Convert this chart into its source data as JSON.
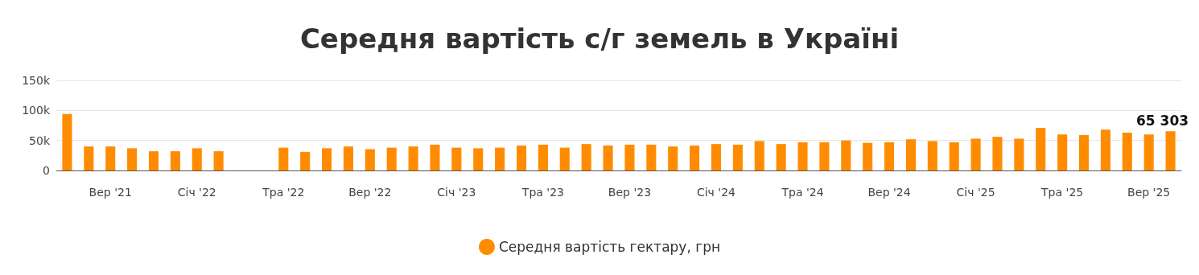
{
  "chart_data": {
    "type": "bar",
    "title": "Середня вартість с/г земель в Україні",
    "categories": [
      null,
      null,
      "Вер '21",
      null,
      null,
      null,
      "Січ '22",
      null,
      null,
      null,
      "Тра '22",
      null,
      null,
      null,
      "Вер '22",
      null,
      null,
      null,
      "Січ '23",
      null,
      null,
      null,
      "Тра '23",
      null,
      null,
      null,
      "Вер '23",
      null,
      null,
      null,
      "Січ '24",
      null,
      null,
      null,
      "Тра '24",
      null,
      null,
      null,
      "Вер '24",
      null,
      null,
      null,
      "Січ '25",
      null,
      null,
      null,
      "Тра '25",
      null,
      null,
      null,
      "Вер '25",
      null
    ],
    "series": [
      {
        "name": "Середня вартість гектару, грн",
        "color": "#ff8c00",
        "values": [
          94000,
          40000,
          40000,
          37000,
          32000,
          32000,
          37000,
          32000,
          null,
          null,
          38000,
          31000,
          37000,
          40000,
          35500,
          38000,
          40000,
          43000,
          38000,
          37000,
          38000,
          41500,
          43000,
          38000,
          44000,
          41500,
          43000,
          43000,
          40000,
          41500,
          44000,
          43000,
          49000,
          44000,
          47000,
          47000,
          50000,
          46000,
          47000,
          52000,
          49000,
          47000,
          53000,
          56000,
          53000,
          71000,
          60000,
          59000,
          68000,
          63000,
          60000,
          65303
        ],
        "value_labels": [
          null,
          null,
          null,
          null,
          null,
          null,
          null,
          null,
          null,
          null,
          null,
          null,
          null,
          null,
          null,
          null,
          null,
          null,
          null,
          null,
          null,
          null,
          null,
          null,
          null,
          null,
          null,
          null,
          null,
          null,
          null,
          null,
          null,
          null,
          null,
          null,
          null,
          null,
          null,
          null,
          null,
          null,
          null,
          null,
          null,
          null,
          null,
          null,
          null,
          null,
          null,
          "65 303"
        ]
      }
    ],
    "ylim": [
      0,
      150000
    ],
    "yticks": [
      {
        "value": 0,
        "label": "0"
      },
      {
        "value": 50000,
        "label": "50k"
      },
      {
        "value": 100000,
        "label": "100k"
      },
      {
        "value": 150000,
        "label": "150k"
      }
    ],
    "grid": "y",
    "legend": "bottom"
  }
}
